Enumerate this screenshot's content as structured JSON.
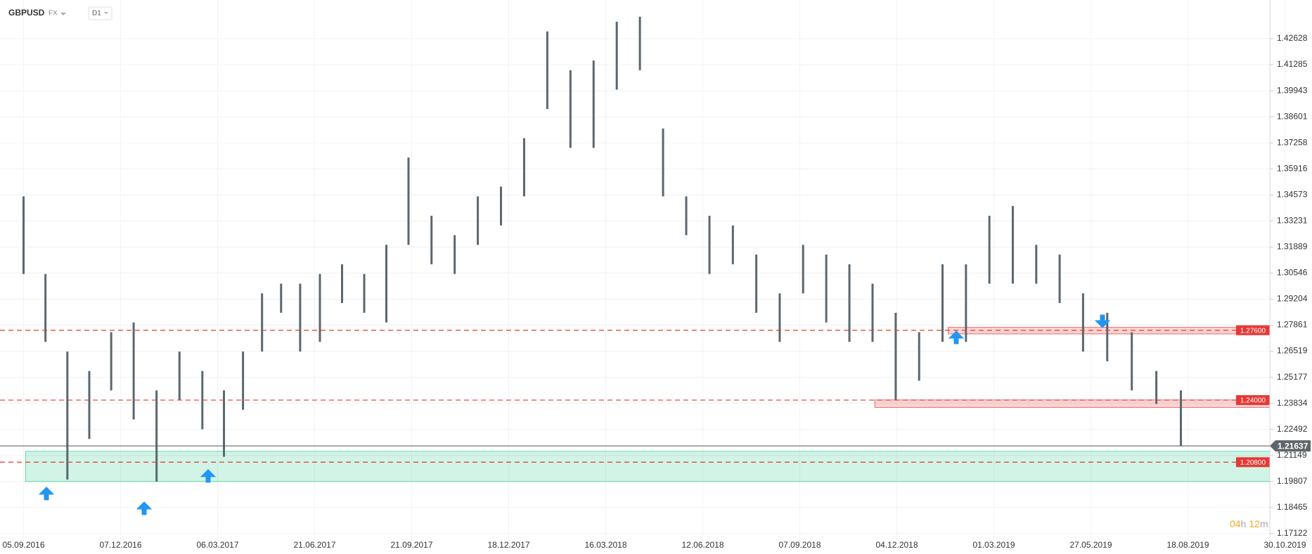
{
  "chart_data": {
    "type": "ohlc",
    "symbol": "GBPUSD",
    "market": "FX",
    "interval": "D1",
    "color": "#5b6770",
    "grid": true,
    "x": [
      "05.09.2016",
      "26.09.2016",
      "17.10.2016",
      "07.11.2016",
      "28.11.2016",
      "19.12.2016",
      "09.01.2017",
      "30.01.2017",
      "20.02.2017",
      "13.03.2017",
      "03.04.2017",
      "24.04.2017",
      "15.05.2017",
      "05.06.2017",
      "26.06.2017",
      "17.07.2017",
      "07.08.2017",
      "28.08.2017",
      "18.09.2017",
      "09.10.2017",
      "30.10.2017",
      "20.11.2017",
      "11.12.2017",
      "01.01.2018",
      "22.01.2018",
      "12.02.2018",
      "05.03.2018",
      "26.03.2018",
      "16.04.2018",
      "07.05.2018",
      "28.05.2018",
      "18.06.2018",
      "09.07.2018",
      "30.07.2018",
      "20.08.2018",
      "10.09.2018",
      "01.10.2018",
      "22.10.2018",
      "12.11.2018",
      "03.12.2018",
      "24.12.2018",
      "14.01.2019",
      "04.02.2019",
      "25.02.2019",
      "18.03.2019",
      "08.04.2019",
      "29.04.2019",
      "20.05.2019",
      "10.06.2019",
      "01.07.2019",
      "22.07.2019",
      "12.08.2019"
    ],
    "high": [
      1.345,
      1.305,
      1.265,
      1.255,
      1.275,
      1.28,
      1.245,
      1.265,
      1.255,
      1.245,
      1.265,
      1.295,
      1.3,
      1.3,
      1.305,
      1.31,
      1.305,
      1.32,
      1.365,
      1.335,
      1.325,
      1.345,
      1.35,
      1.375,
      1.43,
      1.41,
      1.415,
      1.435,
      1.4376,
      1.38,
      1.345,
      1.335,
      1.33,
      1.315,
      1.295,
      1.32,
      1.315,
      1.31,
      1.3,
      1.285,
      1.275,
      1.31,
      1.31,
      1.335,
      1.34,
      1.32,
      1.315,
      1.295,
      1.285,
      1.275,
      1.255,
      1.245
    ],
    "low": [
      1.305,
      1.27,
      1.199,
      1.22,
      1.245,
      1.23,
      1.198,
      1.24,
      1.225,
      1.2108,
      1.235,
      1.265,
      1.285,
      1.265,
      1.27,
      1.29,
      1.285,
      1.28,
      1.32,
      1.31,
      1.305,
      1.32,
      1.33,
      1.345,
      1.39,
      1.37,
      1.37,
      1.4,
      1.41,
      1.345,
      1.325,
      1.305,
      1.31,
      1.285,
      1.27,
      1.295,
      1.28,
      1.27,
      1.27,
      1.24,
      1.25,
      1.27,
      1.27,
      1.3,
      1.3,
      1.3,
      1.29,
      1.265,
      1.26,
      1.245,
      1.238,
      1.21637
    ],
    "ylim": [
      1.1672,
      1.4462
    ],
    "yticks": [
      1.42628,
      1.41285,
      1.39943,
      1.38601,
      1.37258,
      1.35916,
      1.34573,
      1.33231,
      1.31889,
      1.30546,
      1.29204,
      1.27861,
      1.26519,
      1.25177,
      1.23834,
      1.22492,
      1.21149,
      1.19807,
      1.18465,
      1.17122
    ],
    "xticks": [
      "05.09.2016",
      "07.12.2016",
      "06.03.2017",
      "21.06.2017",
      "21.09.2017",
      "18.12.2017",
      "16.03.2018",
      "12.06.2018",
      "07.09.2018",
      "04.12.2018",
      "01.03.2019",
      "27.05.2019",
      "18.08.2019",
      "30.10.2019"
    ],
    "levels": [
      {
        "value": 1.276,
        "label": "1.27600"
      },
      {
        "value": 1.24,
        "label": "1.24000"
      },
      {
        "value": 1.208,
        "label": "1.20800"
      }
    ],
    "level_color": "#e53935",
    "current_price": 1.21637,
    "zones": [
      {
        "from": "07.09.2016",
        "low": 1.198,
        "high": 1.2136,
        "color": "#2ecc8f"
      },
      {
        "from": "19.01.2019",
        "low": 1.2741,
        "high": 1.2775,
        "color": "#e53935"
      },
      {
        "from": "14.11.2018",
        "low": 1.2362,
        "high": 1.2401,
        "color": "#e53935"
      }
    ],
    "countdown": {
      "hours": "04",
      "hours_unit": "h",
      "minutes": "12",
      "minutes_unit": "m"
    }
  }
}
